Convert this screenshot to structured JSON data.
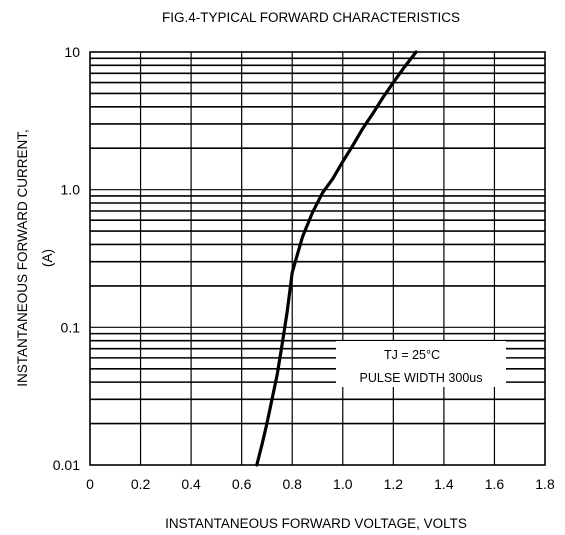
{
  "chart_data": {
    "type": "line",
    "title": "FIG.4-TYPICAL FORWARD CHARACTERISTICS",
    "xlabel": "INSTANTANEOUS FORWARD VOLTAGE, VOLTS",
    "ylabel_line1": "INSTANTANEOUS FORWARD CURRENT,",
    "ylabel_line2": "(A)",
    "xlim": [
      0,
      1.8
    ],
    "ylim": [
      0.01,
      10
    ],
    "y_scale": "log",
    "x_ticks": [
      0,
      0.2,
      0.4,
      0.6,
      0.8,
      1.0,
      1.2,
      1.4,
      1.6,
      1.8
    ],
    "x_tick_labels": [
      "0",
      "0.2",
      "0.4",
      "0.6",
      "0.8",
      "1.0",
      "1.2",
      "1.4",
      "1.6",
      "1.8"
    ],
    "y_ticks": [
      0.01,
      0.1,
      1,
      10
    ],
    "y_tick_labels": [
      "0.01",
      "0.1",
      "1.0",
      "10"
    ],
    "grid": true,
    "series": [
      {
        "x": [
          0.66,
          0.68,
          0.7,
          0.72,
          0.74,
          0.76,
          0.78,
          0.8,
          0.84,
          0.88,
          0.92,
          0.96,
          1.0,
          1.04,
          1.08,
          1.12,
          1.16,
          1.2,
          1.24,
          1.29
        ],
        "y": [
          0.01,
          0.014,
          0.02,
          0.03,
          0.045,
          0.075,
          0.13,
          0.25,
          0.45,
          0.68,
          0.95,
          1.2,
          1.6,
          2.1,
          2.8,
          3.6,
          4.7,
          6.0,
          7.6,
          10
        ]
      }
    ],
    "annotations": [
      "TJ = 25°C",
      "PULSE WIDTH 300us"
    ]
  }
}
